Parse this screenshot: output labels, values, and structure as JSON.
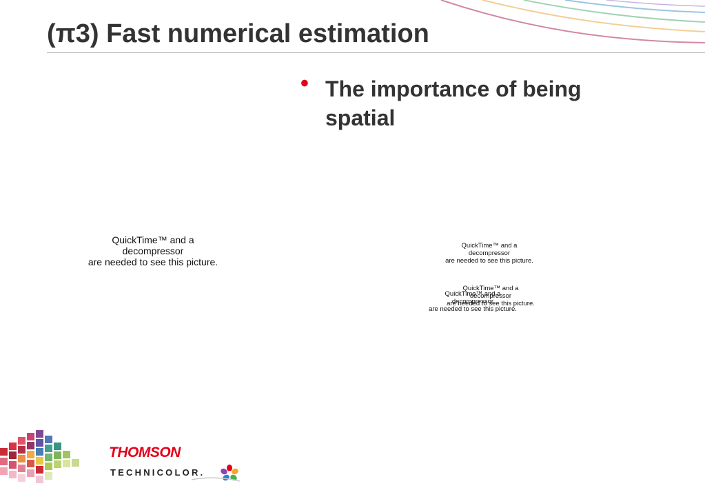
{
  "slide": {
    "title": "(π3) Fast numerical estimation",
    "bullets": [
      {
        "text": "The importance of being spatial"
      }
    ],
    "media_placeholders": [
      {
        "line1": "QuickTime™ and a",
        "line2": "decompressor",
        "line3": "are needed to see this picture."
      },
      {
        "line1": "QuickTime™ and a",
        "line2": "decompressor",
        "line3": "are needed to see this picture."
      },
      {
        "line1": "QuickTime™ and a",
        "line2": "decompressor",
        "line3": "are needed to see this picture."
      },
      {
        "line1": "QuickTime™ and a",
        "line2": "decompressor",
        "line3": "are needed to see this picture."
      }
    ]
  },
  "branding": {
    "logo_text_1": "THOMSON",
    "logo_text_2": "TECHNICOLOR.",
    "logo_icon": "flower-icon",
    "accent_color": "#e2001a"
  }
}
